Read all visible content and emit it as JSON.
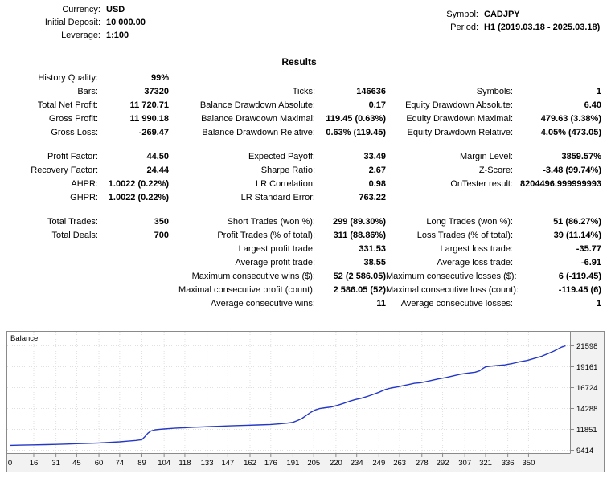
{
  "header": {
    "left": [
      {
        "label": "Currency:",
        "value": "USD"
      },
      {
        "label": "Initial Deposit:",
        "value": "10 000.00"
      },
      {
        "label": "Leverage:",
        "value": "1:100"
      }
    ],
    "right": [
      {
        "label": "Symbol:",
        "value": "CADJPY"
      },
      {
        "label": "Period:",
        "value": "H1 (2019.03.18 - 2025.03.18)"
      }
    ]
  },
  "results": {
    "title": "Results"
  },
  "stats": {
    "rows": [
      {
        "cells": [
          "History Quality:",
          "99%",
          "",
          "",
          "",
          ""
        ]
      },
      {
        "cells": [
          "Bars:",
          "37320",
          "Ticks:",
          "146636",
          "Symbols:",
          "1"
        ]
      },
      {
        "cells": [
          "Total Net Profit:",
          "11 720.71",
          "Balance Drawdown Absolute:",
          "0.17",
          "Equity Drawdown Absolute:",
          "6.40"
        ]
      },
      {
        "cells": [
          "Gross Profit:",
          "11 990.18",
          "Balance Drawdown Maximal:",
          "119.45 (0.63%)",
          "Equity Drawdown Maximal:",
          "479.63 (3.38%)"
        ]
      },
      {
        "cells": [
          "Gross Loss:",
          "-269.47",
          "Balance Drawdown Relative:",
          "0.63% (119.45)",
          "Equity Drawdown Relative:",
          "4.05% (473.05)"
        ]
      },
      {
        "spacer": true
      },
      {
        "cells": [
          "Profit Factor:",
          "44.50",
          "Expected Payoff:",
          "33.49",
          "Margin Level:",
          "3859.57%"
        ]
      },
      {
        "cells": [
          "Recovery Factor:",
          "24.44",
          "Sharpe Ratio:",
          "2.67",
          "Z-Score:",
          "-3.48 (99.74%)"
        ]
      },
      {
        "cells": [
          "AHPR:",
          "1.0022 (0.22%)",
          "LR Correlation:",
          "0.98",
          "OnTester result:",
          "8204496.999999993"
        ]
      },
      {
        "cells": [
          "GHPR:",
          "1.0022 (0.22%)",
          "LR Standard Error:",
          "763.22",
          "",
          ""
        ]
      },
      {
        "spacer": true
      },
      {
        "cells": [
          "Total Trades:",
          "350",
          "Short Trades (won %):",
          "299 (89.30%)",
          "Long Trades (won %):",
          "51 (86.27%)"
        ]
      },
      {
        "cells": [
          "Total Deals:",
          "700",
          "Profit Trades (% of total):",
          "311 (88.86%)",
          "Loss Trades (% of total):",
          "39 (11.14%)"
        ]
      },
      {
        "cells": [
          "",
          "",
          "Largest profit trade:",
          "331.53",
          "Largest loss trade:",
          "-35.77"
        ]
      },
      {
        "cells": [
          "",
          "",
          "Average profit trade:",
          "38.55",
          "Average loss trade:",
          "-6.91"
        ]
      },
      {
        "cells": [
          "",
          "",
          "Maximum consecutive wins ($):",
          "52 (2 586.05)",
          "Maximum consecutive losses ($):",
          "6 (-119.45)"
        ]
      },
      {
        "cells": [
          "",
          "",
          "Maximal consecutive profit (count):",
          "2 586.05 (52)",
          "Maximal consecutive loss (count):",
          "-119.45 (6)"
        ]
      },
      {
        "cells": [
          "",
          "",
          "Average consecutive wins:",
          "11",
          "Average consecutive losses:",
          "1"
        ]
      }
    ]
  },
  "chart_data": {
    "type": "line",
    "title": "Balance",
    "xlabel": "",
    "ylabel": "",
    "x_range": [
      0,
      375
    ],
    "y_range": [
      9414,
      21598
    ],
    "x_ticks": [
      0,
      16,
      31,
      45,
      60,
      74,
      89,
      104,
      118,
      133,
      147,
      162,
      176,
      191,
      205,
      220,
      234,
      249,
      263,
      278,
      292,
      307,
      321,
      336,
      350
    ],
    "y_ticks": [
      21598,
      19161,
      16724,
      14288,
      11851,
      9414
    ],
    "grid": true,
    "legend_position": "top-left",
    "colors": {
      "border": "#8a8a8a",
      "grid": "#e0e0e0",
      "frame_bg": "#f2f2f2"
    },
    "series": [
      {
        "name": "Balance",
        "color": "#2438c8",
        "points": [
          [
            0,
            9990
          ],
          [
            8,
            10010
          ],
          [
            16,
            10040
          ],
          [
            24,
            10070
          ],
          [
            31,
            10100
          ],
          [
            38,
            10140
          ],
          [
            45,
            10180
          ],
          [
            52,
            10220
          ],
          [
            60,
            10270
          ],
          [
            67,
            10330
          ],
          [
            74,
            10400
          ],
          [
            80,
            10480
          ],
          [
            85,
            10560
          ],
          [
            89,
            10650
          ],
          [
            91,
            11000
          ],
          [
            93,
            11400
          ],
          [
            95,
            11650
          ],
          [
            98,
            11800
          ],
          [
            101,
            11860
          ],
          [
            104,
            11900
          ],
          [
            108,
            11950
          ],
          [
            112,
            12000
          ],
          [
            118,
            12050
          ],
          [
            124,
            12100
          ],
          [
            130,
            12140
          ],
          [
            136,
            12180
          ],
          [
            142,
            12220
          ],
          [
            147,
            12250
          ],
          [
            153,
            12290
          ],
          [
            160,
            12330
          ],
          [
            167,
            12370
          ],
          [
            176,
            12420
          ],
          [
            182,
            12500
          ],
          [
            187,
            12580
          ],
          [
            191,
            12680
          ],
          [
            194,
            12880
          ],
          [
            197,
            13120
          ],
          [
            200,
            13480
          ],
          [
            203,
            13850
          ],
          [
            206,
            14120
          ],
          [
            209,
            14280
          ],
          [
            213,
            14380
          ],
          [
            217,
            14470
          ],
          [
            221,
            14650
          ],
          [
            225,
            14880
          ],
          [
            229,
            15120
          ],
          [
            233,
            15330
          ],
          [
            237,
            15480
          ],
          [
            241,
            15680
          ],
          [
            245,
            15930
          ],
          [
            249,
            16180
          ],
          [
            253,
            16480
          ],
          [
            257,
            16680
          ],
          [
            261,
            16790
          ],
          [
            265,
            16940
          ],
          [
            269,
            17080
          ],
          [
            273,
            17230
          ],
          [
            277,
            17300
          ],
          [
            281,
            17440
          ],
          [
            285,
            17590
          ],
          [
            289,
            17740
          ],
          [
            294,
            17890
          ],
          [
            299,
            18090
          ],
          [
            304,
            18290
          ],
          [
            309,
            18410
          ],
          [
            314,
            18520
          ],
          [
            317,
            18680
          ],
          [
            319,
            18950
          ],
          [
            321,
            19150
          ],
          [
            325,
            19240
          ],
          [
            329,
            19300
          ],
          [
            334,
            19380
          ],
          [
            339,
            19540
          ],
          [
            344,
            19740
          ],
          [
            349,
            19890
          ],
          [
            354,
            20140
          ],
          [
            359,
            20390
          ],
          [
            363,
            20680
          ],
          [
            367,
            20980
          ],
          [
            370,
            21230
          ],
          [
            372,
            21430
          ],
          [
            375,
            21598
          ]
        ]
      }
    ]
  }
}
